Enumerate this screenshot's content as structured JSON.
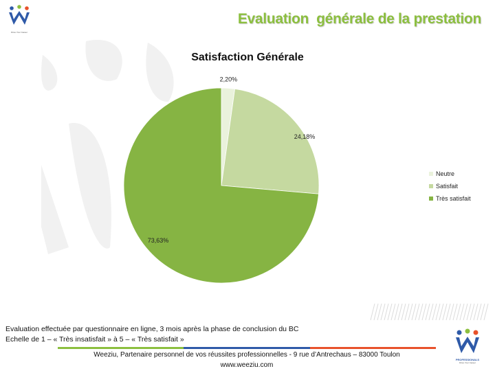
{
  "slide": {
    "title": "Evaluation  générale de la prestation",
    "note_line1": "Evaluation effectuée par questionnaire en ligne, 3 mois après la phase de conclusion du BC",
    "note_line2": "Echelle de 1 – « Très insatisfait » à 5 – « Très satisfait »",
    "footer_line1": "Weeziu, Partenaire personnel de vos réussites professionnelles - 9 rue d’Antrechaus – 83000 Toulon",
    "footer_url": "www.weeziu.com",
    "logo_tagline": "Drive Your Career",
    "logo_professionals": "PROFESSIONALS",
    "footer_bar_colors": [
      "#8cbf3f",
      "#2f5aa8",
      "#e8522b"
    ]
  },
  "chart_data": {
    "type": "pie",
    "title": "Satisfaction Générale",
    "categories": [
      "Neutre",
      "Satisfait",
      "Très satisfait"
    ],
    "values": [
      2.2,
      24.18,
      73.63
    ],
    "data_labels": [
      "2,20%",
      "24,18%",
      "73,63%"
    ],
    "colors": [
      "#eaf2dc",
      "#c5d9a0",
      "#86b443"
    ],
    "legend_position": "right",
    "start_angle": "12 o'clock, clockwise"
  }
}
